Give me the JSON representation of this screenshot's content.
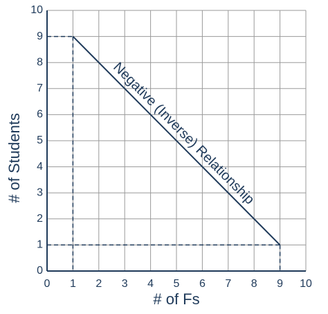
{
  "chart_data": {
    "type": "line",
    "x_label": "# of Fs",
    "y_label": "# of Students",
    "annotation": "Negative (Inverse) Relationship",
    "x": [
      1,
      9
    ],
    "series": [
      {
        "values": [
          9,
          1
        ],
        "color": "#1f3a5a"
      }
    ],
    "xlim": [
      0,
      10
    ],
    "ylim": [
      0,
      10
    ],
    "xticks": [
      0,
      1,
      2,
      3,
      4,
      5,
      6,
      7,
      8,
      9,
      10
    ],
    "yticks": [
      0,
      1,
      2,
      3,
      4,
      5,
      6,
      7,
      8,
      9,
      10
    ],
    "grid": true
  }
}
